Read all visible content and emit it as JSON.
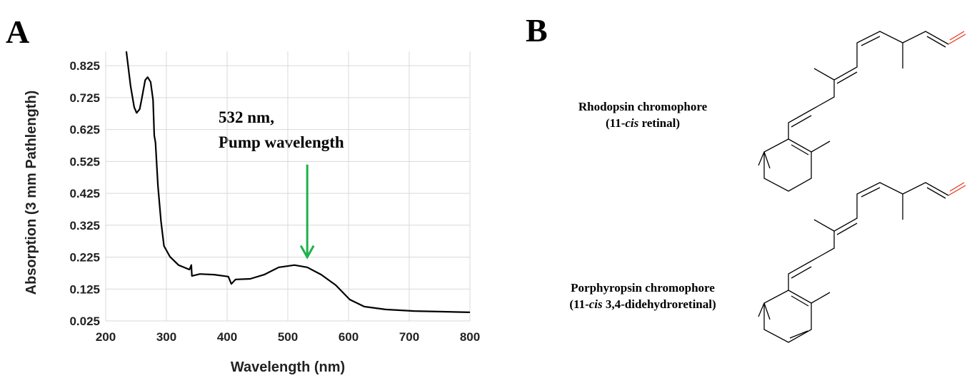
{
  "chart_data": {
    "type": "line",
    "x_label": "Wavelength (nm)",
    "y_label": "Absorption (3 mm Pathlength)",
    "x": [
      234,
      241,
      247,
      251,
      256,
      259,
      265,
      269,
      274,
      278,
      280,
      282,
      286,
      291,
      296,
      306,
      320,
      338,
      341,
      342,
      355,
      379,
      402,
      407,
      414,
      438,
      461,
      485,
      511,
      532,
      555,
      579,
      602,
      626,
      661,
      708,
      755,
      800
    ],
    "series": [
      {
        "color": "#000000",
        "values": [
          0.87,
          0.762,
          0.695,
          0.677,
          0.689,
          0.718,
          0.78,
          0.789,
          0.774,
          0.718,
          0.606,
          0.584,
          0.45,
          0.338,
          0.26,
          0.226,
          0.2,
          0.186,
          0.2,
          0.166,
          0.172,
          0.17,
          0.164,
          0.141,
          0.155,
          0.157,
          0.17,
          0.193,
          0.2,
          0.193,
          0.17,
          0.137,
          0.092,
          0.07,
          0.061,
          0.056,
          0.054,
          0.052
        ]
      }
    ],
    "xlim": [
      200,
      800
    ],
    "xticks": [
      200,
      300,
      400,
      500,
      600,
      700,
      800
    ],
    "ylim": [
      0.025,
      0.87
    ],
    "yticks": [
      0.025,
      0.125,
      0.225,
      0.325,
      0.425,
      0.525,
      0.625,
      0.725,
      0.825
    ],
    "grid": true,
    "annotation": [
      "532 nm,",
      "Pump wavelength"
    ],
    "arrow": {
      "x": 532,
      "y_from": 0.515,
      "y_to": 0.225,
      "color": "#1db14b"
    }
  },
  "figure": {
    "panel_a": "A",
    "panel_b": "B",
    "structures": [
      {
        "name": "Rhodopsin chromophore",
        "detail": [
          "(11-",
          "cis",
          " retinal)"
        ]
      },
      {
        "name": "Porphyropsin chromophore",
        "detail": [
          "(11-",
          "cis",
          " 3,4-didehydroretinal)"
        ]
      }
    ]
  }
}
